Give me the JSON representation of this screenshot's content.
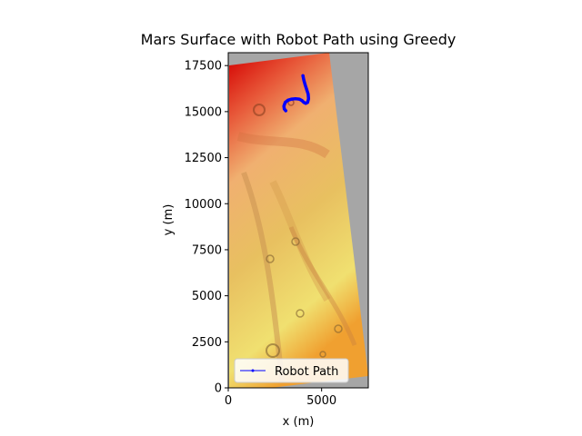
{
  "chart_data": {
    "type": "line",
    "title": "Mars Surface with Robot Path using Greedy",
    "xlabel": "x (m)",
    "ylabel": "y (m)",
    "xlim": [
      0,
      7500
    ],
    "ylim": [
      0,
      18200
    ],
    "xticks": [
      0,
      5000
    ],
    "yticks": [
      0,
      2500,
      5000,
      7500,
      10000,
      12500,
      15000,
      17500
    ],
    "background_color": "#a6a6a6",
    "terrain_colormap": [
      "#cc0000",
      "#e06020",
      "#f0a040",
      "#e8c860",
      "#f0f080"
    ],
    "legend_position": "lower-left",
    "series": [
      {
        "name": "Robot Path",
        "color": "#0000ff",
        "x": [
          4000,
          4050,
          4120,
          4200,
          4280,
          4300,
          4250,
          4150,
          4050,
          3950,
          3800,
          3600,
          3400,
          3200,
          3050,
          2980,
          3000,
          3080
        ],
        "y": [
          16950,
          16700,
          16450,
          16200,
          15950,
          15700,
          15500,
          15450,
          15500,
          15600,
          15680,
          15700,
          15680,
          15620,
          15500,
          15300,
          15150,
          15050
        ]
      }
    ]
  }
}
